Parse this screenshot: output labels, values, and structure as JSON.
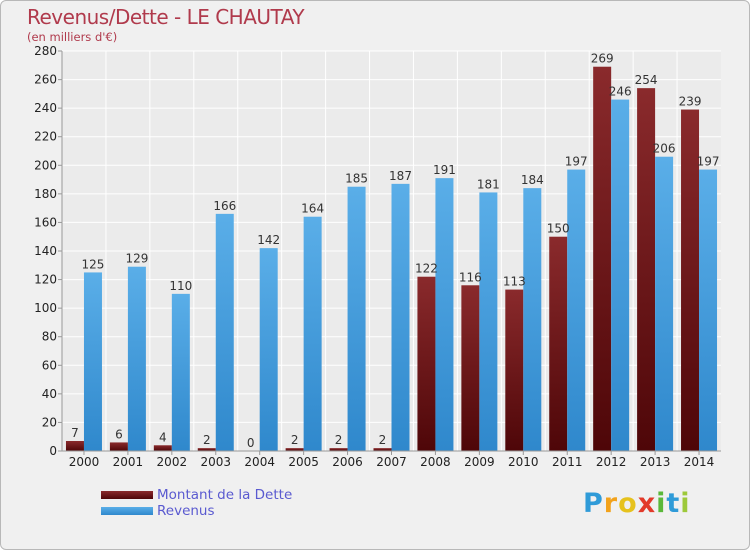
{
  "title": "Revenus/Dette - LE CHAUTAY",
  "subtitle": "(en milliers d'€)",
  "logo": {
    "text": "Proxiti",
    "letters": [
      "P",
      "r",
      "o",
      "x",
      "i",
      "t",
      "i"
    ],
    "colors": [
      "#2f9bd8",
      "#f2a21b",
      "#e6c21d",
      "#e23a2a",
      "#5ab83a",
      "#2f9bd8",
      "#9dc93a"
    ]
  },
  "colors": {
    "debt": "#7a1416",
    "revenue": "#3b97da",
    "axis_text": "#222222",
    "grid": "#ffffff",
    "plot_bg": "#ebebeb",
    "title": "#b03a4c",
    "legend_text": "#5a5ad0"
  },
  "chart_data": {
    "type": "bar",
    "categories": [
      "2000",
      "2001",
      "2002",
      "2003",
      "2004",
      "2005",
      "2006",
      "2007",
      "2008",
      "2009",
      "2010",
      "2011",
      "2012",
      "2013",
      "2014"
    ],
    "series": [
      {
        "name": "Montant de la Dette",
        "values": [
          7,
          6,
          4,
          2,
          0,
          2,
          2,
          2,
          122,
          116,
          113,
          150,
          269,
          254,
          239
        ]
      },
      {
        "name": "Revenus",
        "values": [
          125,
          129,
          110,
          166,
          142,
          164,
          185,
          187,
          191,
          181,
          184,
          197,
          246,
          206,
          197
        ]
      }
    ],
    "ylim": [
      0,
      280
    ],
    "yticks": [
      0,
      20,
      40,
      60,
      80,
      100,
      120,
      140,
      160,
      180,
      200,
      220,
      240,
      260,
      280
    ],
    "grid": true,
    "legend_position": "bottom-left",
    "data_labels": true
  }
}
